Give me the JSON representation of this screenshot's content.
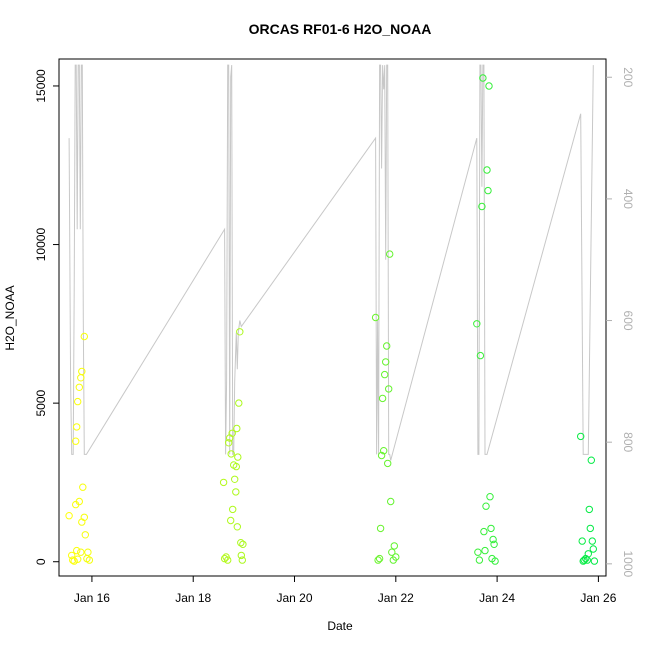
{
  "chart_data": {
    "type": "scatter",
    "title": "ORCAS RF01-6 H2O_NOAA",
    "xlabel": "Date",
    "ylabel": "H2O_NOAA",
    "x_ticks": [
      "Jan 16",
      "Jan 18",
      "Jan 20",
      "Jan 22",
      "Jan 24",
      "Jan 26"
    ],
    "y_ticks": [
      0,
      5000,
      10000,
      15000
    ],
    "y_right_ticks": [
      200,
      400,
      600,
      800,
      1000
    ],
    "xlim": [
      15.35,
      26.15
    ],
    "ylim": [
      -450,
      15850
    ],
    "y_right_lim": [
      170,
      1020
    ],
    "y_right_reversed": true,
    "grid": false,
    "series": [
      {
        "marker": "open-circle",
        "points": [
          [
            15.55,
            1450
          ],
          [
            15.6,
            200
          ],
          [
            15.62,
            50
          ],
          [
            15.65,
            20
          ],
          [
            15.68,
            1800
          ],
          [
            15.7,
            350
          ],
          [
            15.72,
            80
          ],
          [
            15.75,
            1900
          ],
          [
            15.78,
            300
          ],
          [
            15.8,
            1250
          ],
          [
            15.82,
            2350
          ],
          [
            15.85,
            1400
          ],
          [
            15.87,
            850
          ],
          [
            15.9,
            100
          ],
          [
            15.92,
            300
          ],
          [
            15.95,
            50
          ],
          [
            15.68,
            3800
          ],
          [
            15.7,
            4250
          ],
          [
            15.72,
            5050
          ],
          [
            15.75,
            5500
          ],
          [
            15.78,
            5800
          ],
          [
            15.8,
            6000
          ],
          [
            15.85,
            7100
          ],
          [
            18.6,
            2500
          ],
          [
            18.62,
            100
          ],
          [
            18.65,
            150
          ],
          [
            18.68,
            50
          ],
          [
            18.7,
            3750
          ],
          [
            18.72,
            3900
          ],
          [
            18.74,
            1300
          ],
          [
            18.75,
            3400
          ],
          [
            18.77,
            4050
          ],
          [
            18.78,
            1650
          ],
          [
            18.8,
            3050
          ],
          [
            18.82,
            2600
          ],
          [
            18.84,
            2200
          ],
          [
            18.85,
            3000
          ],
          [
            18.86,
            4200
          ],
          [
            18.87,
            1100
          ],
          [
            18.88,
            3300
          ],
          [
            18.9,
            5000
          ],
          [
            18.92,
            7250
          ],
          [
            18.94,
            600
          ],
          [
            18.95,
            200
          ],
          [
            18.97,
            50
          ],
          [
            18.98,
            550
          ],
          [
            21.6,
            7700
          ],
          [
            21.65,
            50
          ],
          [
            21.68,
            100
          ],
          [
            21.7,
            1050
          ],
          [
            21.72,
            3350
          ],
          [
            21.74,
            5150
          ],
          [
            21.76,
            3500
          ],
          [
            21.78,
            5900
          ],
          [
            21.8,
            6300
          ],
          [
            21.82,
            6800
          ],
          [
            21.84,
            3100
          ],
          [
            21.86,
            5450
          ],
          [
            21.88,
            9700
          ],
          [
            21.9,
            1900
          ],
          [
            21.92,
            300
          ],
          [
            21.95,
            50
          ],
          [
            21.97,
            500
          ],
          [
            22.0,
            150
          ],
          [
            23.6,
            7500
          ],
          [
            23.62,
            300
          ],
          [
            23.65,
            50
          ],
          [
            23.67,
            6500
          ],
          [
            23.7,
            11200
          ],
          [
            23.72,
            15250
          ],
          [
            23.74,
            950
          ],
          [
            23.76,
            350
          ],
          [
            23.78,
            1750
          ],
          [
            23.8,
            12350
          ],
          [
            23.82,
            11700
          ],
          [
            23.84,
            15000
          ],
          [
            23.86,
            2050
          ],
          [
            23.88,
            1050
          ],
          [
            23.9,
            100
          ],
          [
            23.92,
            700
          ],
          [
            23.94,
            550
          ],
          [
            23.96,
            20
          ],
          [
            25.65,
            3950
          ],
          [
            25.68,
            650
          ],
          [
            25.7,
            20
          ],
          [
            25.72,
            50
          ],
          [
            25.75,
            100
          ],
          [
            25.78,
            50
          ],
          [
            25.8,
            250
          ],
          [
            25.82,
            1650
          ],
          [
            25.84,
            1050
          ],
          [
            25.86,
            3200
          ],
          [
            25.88,
            650
          ],
          [
            25.9,
            400
          ],
          [
            25.92,
            20
          ]
        ]
      },
      {
        "name": "",
        "axis": "right",
        "style": "line",
        "color": "#c8c8c8",
        "points": [
          [
            15.55,
            300
          ],
          [
            15.58,
            700
          ],
          [
            15.6,
            820
          ],
          [
            15.63,
            820
          ],
          [
            15.65,
            550
          ],
          [
            15.67,
            180
          ],
          [
            15.69,
            180
          ],
          [
            15.71,
            450
          ],
          [
            15.73,
            180
          ],
          [
            15.75,
            180
          ],
          [
            15.77,
            450
          ],
          [
            15.79,
            180
          ],
          [
            15.81,
            180
          ],
          [
            15.83,
            600
          ],
          [
            15.85,
            820
          ],
          [
            15.87,
            820
          ],
          [
            15.89,
            820
          ],
          [
            18.62,
            450
          ],
          [
            18.64,
            820
          ],
          [
            18.66,
            700
          ],
          [
            18.68,
            180
          ],
          [
            18.7,
            180
          ],
          [
            18.72,
            820
          ],
          [
            18.74,
            200
          ],
          [
            18.76,
            180
          ],
          [
            18.78,
            820
          ],
          [
            18.8,
            820
          ],
          [
            18.82,
            700
          ],
          [
            18.85,
            620
          ],
          [
            18.87,
            680
          ],
          [
            18.89,
            620
          ],
          [
            18.92,
            600
          ],
          [
            18.95,
            610
          ],
          [
            21.6,
            300
          ],
          [
            21.62,
            820
          ],
          [
            21.64,
            600
          ],
          [
            21.66,
            820
          ],
          [
            21.68,
            180
          ],
          [
            21.7,
            180
          ],
          [
            21.72,
            350
          ],
          [
            21.74,
            180
          ],
          [
            21.76,
            220
          ],
          [
            21.78,
            180
          ],
          [
            21.8,
            500
          ],
          [
            21.82,
            180
          ],
          [
            21.84,
            180
          ],
          [
            21.86,
            820
          ],
          [
            21.88,
            820
          ],
          [
            21.9,
            830
          ],
          [
            23.6,
            300
          ],
          [
            23.62,
            820
          ],
          [
            23.64,
            820
          ],
          [
            23.66,
            180
          ],
          [
            23.68,
            180
          ],
          [
            23.7,
            380
          ],
          [
            23.72,
            180
          ],
          [
            23.74,
            180
          ],
          [
            23.76,
            820
          ],
          [
            23.78,
            820
          ],
          [
            23.8,
            820
          ],
          [
            25.65,
            260
          ],
          [
            25.7,
            820
          ],
          [
            25.72,
            820
          ],
          [
            25.8,
            820
          ],
          [
            25.9,
            180
          ]
        ]
      }
    ]
  }
}
